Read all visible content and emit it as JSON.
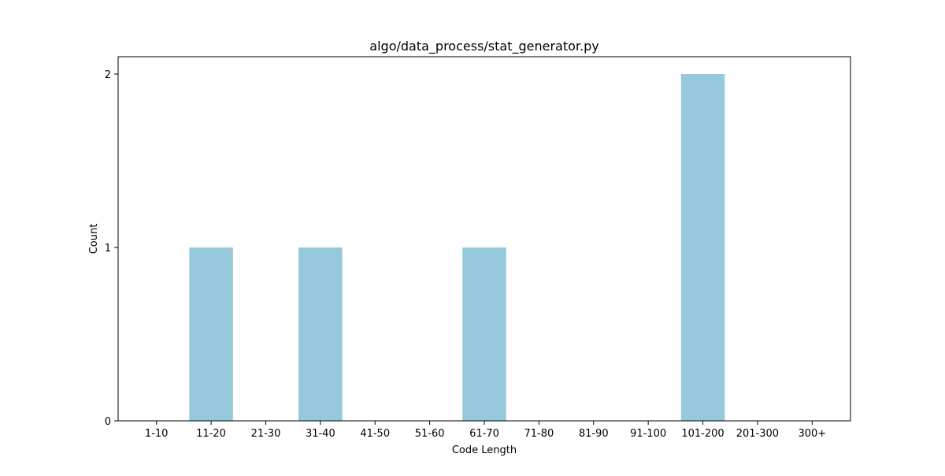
{
  "chart_data": {
    "type": "bar",
    "title": "algo/data_process/stat_generator.py",
    "xlabel": "Code Length",
    "ylabel": "Count",
    "categories": [
      "1-10",
      "11-20",
      "21-30",
      "31-40",
      "41-50",
      "51-60",
      "61-70",
      "71-80",
      "81-90",
      "91-100",
      "101-200",
      "201-300",
      "300+"
    ],
    "values": [
      0,
      1,
      0,
      1,
      0,
      0,
      1,
      0,
      0,
      0,
      2,
      0,
      0
    ],
    "yticks": [
      0,
      1,
      2
    ],
    "ylim": [
      0,
      2.1
    ],
    "grid": false,
    "legend": "none",
    "bar_color": "#96c9dc"
  }
}
